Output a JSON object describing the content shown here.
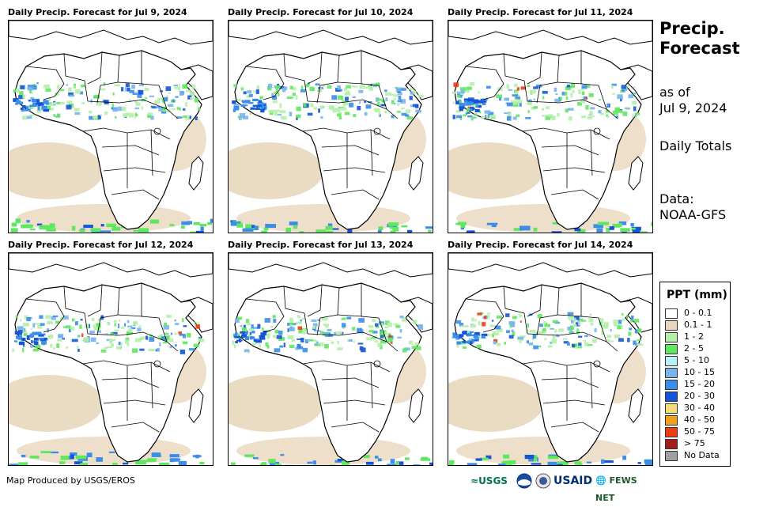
{
  "panels": [
    {
      "title": "Daily Precip. Forecast for Jul 9, 2024",
      "day": 0
    },
    {
      "title": "Daily Precip. Forecast for Jul 10, 2024",
      "day": 1
    },
    {
      "title": "Daily Precip. Forecast for Jul 11, 2024",
      "day": 2
    },
    {
      "title": "Daily Precip. Forecast for Jul 12, 2024",
      "day": 3
    },
    {
      "title": "Daily Precip. Forecast for Jul 13, 2024",
      "day": 4
    },
    {
      "title": "Daily Precip. Forecast for Jul 14, 2024",
      "day": 5
    }
  ],
  "side": {
    "title_line1": "Precip.",
    "title_line2": "Forecast",
    "asof_line1": "as of",
    "asof_line2": "Jul 9, 2024",
    "totals": "Daily Totals",
    "data_line1": "Data:",
    "data_line2": "NOAA-GFS"
  },
  "legend": {
    "title": "PPT (mm)",
    "items": [
      {
        "label": "0 - 0.1",
        "color": "#ffffff"
      },
      {
        "label": "0.1 - 1",
        "color": "#e8d7bc"
      },
      {
        "label": "1 - 2",
        "color": "#b5efab"
      },
      {
        "label": "2 - 5",
        "color": "#5fe85f"
      },
      {
        "label": "5 - 10",
        "color": "#b8f2f5"
      },
      {
        "label": "10 - 15",
        "color": "#78b4ee"
      },
      {
        "label": "15 - 20",
        "color": "#3b8ee8"
      },
      {
        "label": "20 - 30",
        "color": "#1656d6"
      },
      {
        "label": "30 - 40",
        "color": "#f7dd7a"
      },
      {
        "label": "40 - 50",
        "color": "#f3a021"
      },
      {
        "label": "50 - 75",
        "color": "#ee3b12"
      },
      {
        "label": "> 75",
        "color": "#a41d1d"
      },
      {
        "label": "No Data",
        "color": "#a0a0a0"
      }
    ]
  },
  "credit": "Map Produced by USGS/EROS",
  "logos": {
    "usgs": "USGS",
    "noaa": "NOAA",
    "usaid": "USAID",
    "fews": "FEWS NET"
  }
}
